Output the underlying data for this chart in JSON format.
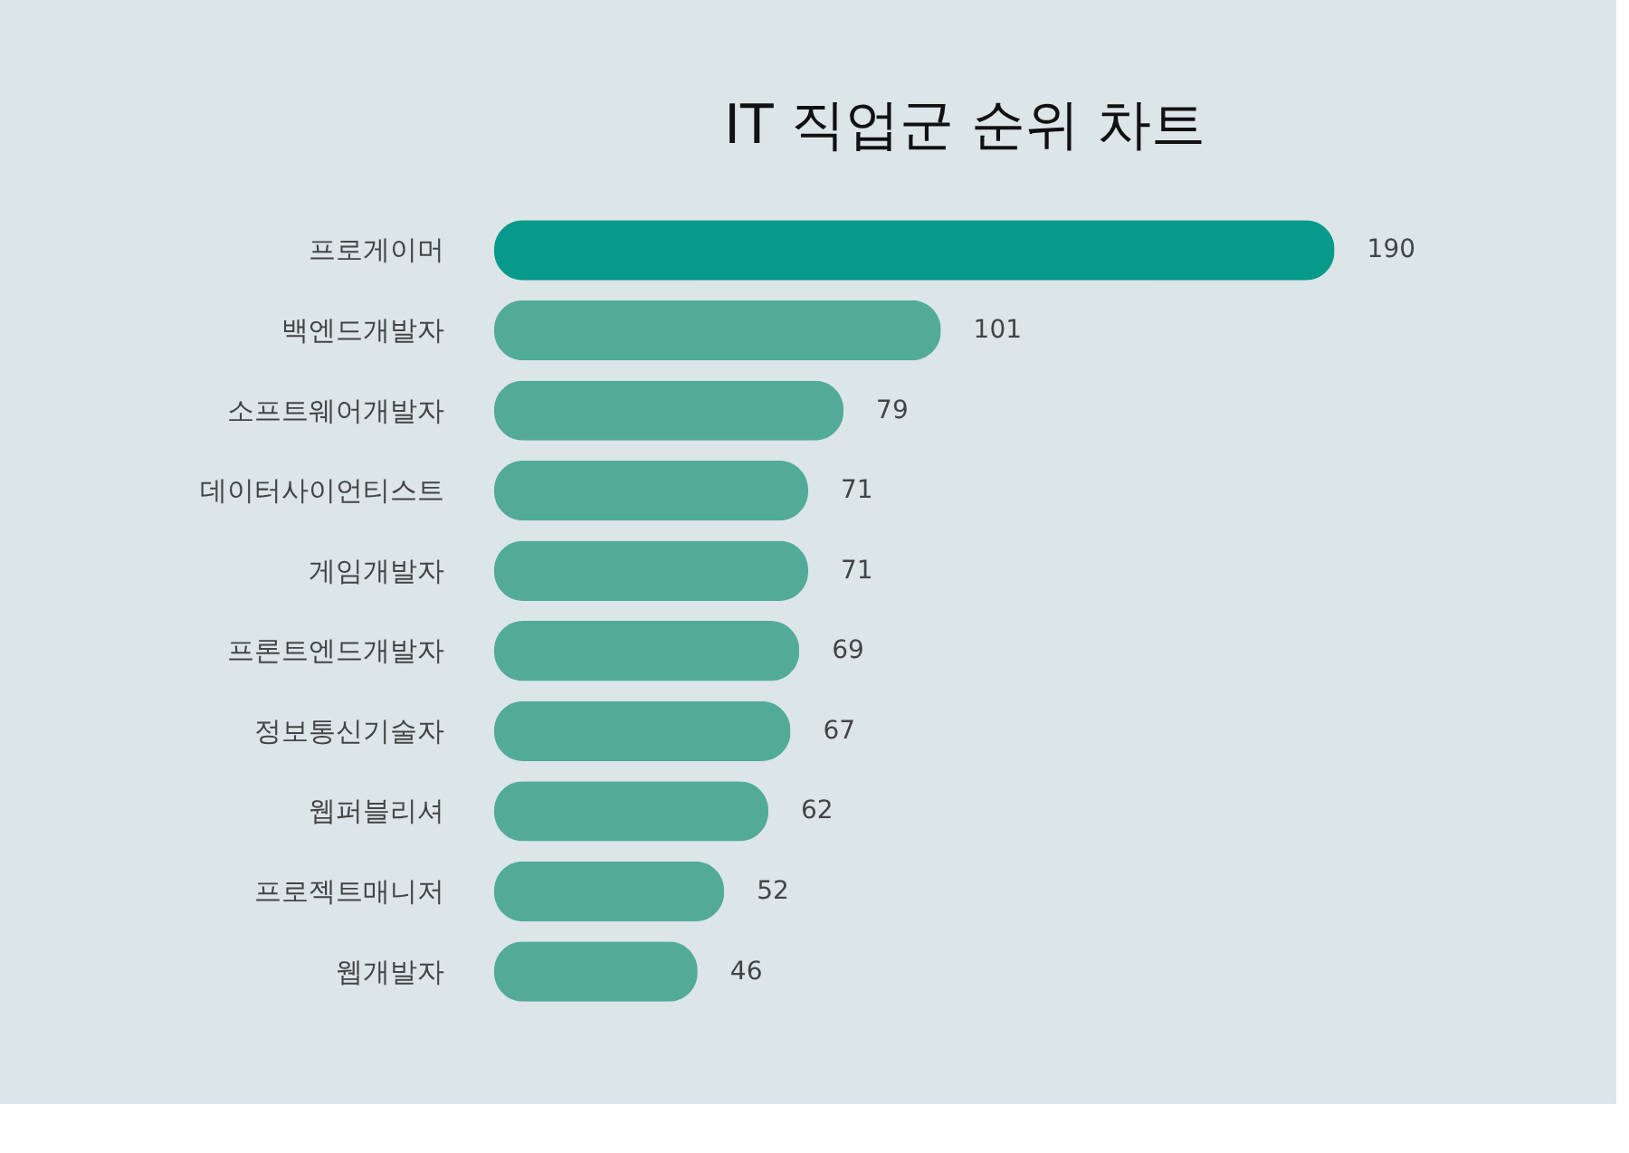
{
  "chart_data": {
    "type": "bar",
    "title": "IT 직업군 순위 차트",
    "orientation": "horizontal",
    "data_labels": true,
    "categories": [
      "프로게이머",
      "백엔드개발자",
      "소프트웨어개발자",
      "데이터사이언티스트",
      "게임개발자",
      "프론트엔드개발자",
      "정보통신기술자",
      "웹퍼블리셔",
      "프로젝트매니저",
      "웹개발자"
    ],
    "values": [
      190,
      101,
      79,
      71,
      71,
      69,
      67,
      62,
      52,
      46
    ],
    "colors": [
      "#07998a",
      "#52ab98",
      "#52ab98",
      "#52ab98",
      "#52ab98",
      "#52ab98",
      "#52ab98",
      "#52ab98",
      "#52ab98",
      "#52ab98"
    ],
    "grid": false,
    "tick_labels": "y"
  }
}
